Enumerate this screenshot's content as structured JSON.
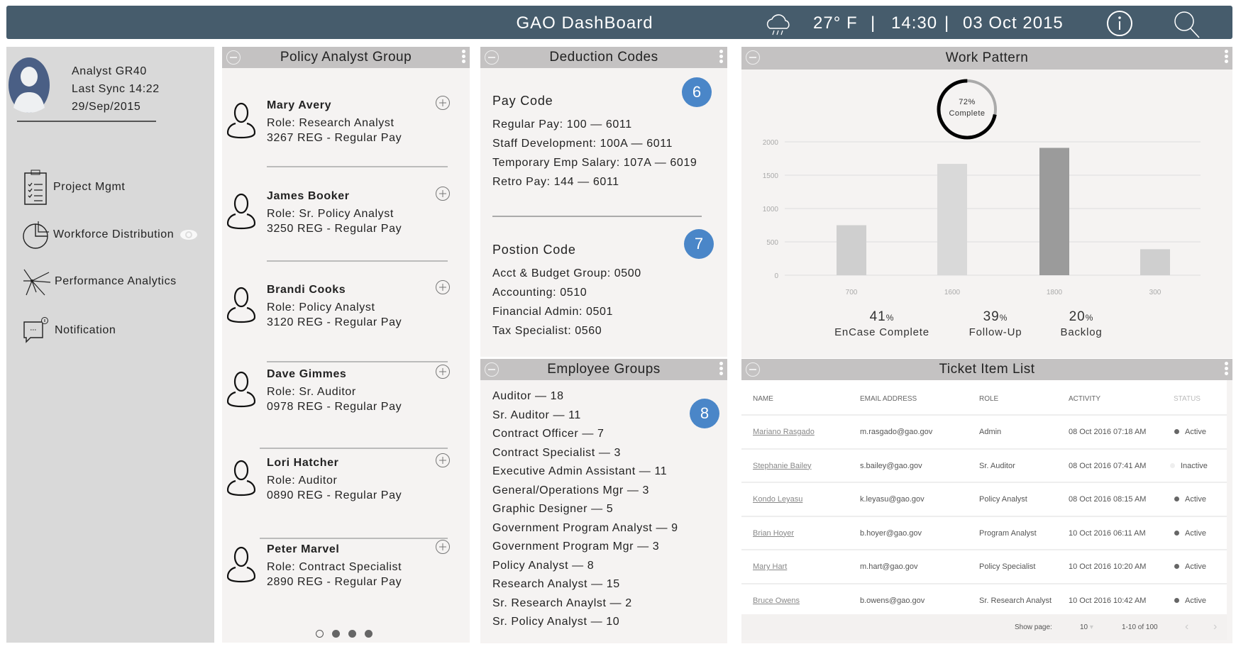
{
  "header": {
    "title": "GAO DashBoard",
    "weather_icon": "cloud-rain-icon",
    "temperature": "27° F",
    "time": "14:30",
    "date": "03 Oct 2015",
    "sep": "|"
  },
  "profile": {
    "name": "Analyst GR40",
    "sync": "Last Sync 14:22",
    "date": "29/Sep/2015"
  },
  "nav": [
    {
      "label": "Project Mgmt",
      "icon": "clipboard-icon"
    },
    {
      "label": "Workforce Distribution",
      "icon": "pie-chart-icon"
    },
    {
      "label": "Performance Analytics",
      "icon": "network-icon"
    },
    {
      "label": "Notification",
      "icon": "chat-bubble-icon"
    }
  ],
  "policy": {
    "title": "Policy Analyst Group",
    "people": [
      {
        "name": "Mary Avery",
        "role": "Role: Research Analyst",
        "pay": "3267 REG - Regular Pay"
      },
      {
        "name": "James Booker",
        "role": "Role: Sr. Policy Analyst",
        "pay": "3250 REG - Regular Pay"
      },
      {
        "name": "Brandi Cooks",
        "role": "Role: Policy Analyst",
        "pay": "3120 REG - Regular Pay"
      },
      {
        "name": "Dave Gimmes",
        "role": "Role: Sr. Auditor",
        "pay": "0978 REG - Regular Pay"
      },
      {
        "name": "Lori Hatcher",
        "role": "Role: Auditor",
        "pay": "0890 REG - Regular Pay"
      },
      {
        "name": "Peter Marvel",
        "role": "Role: Contract Specialist",
        "pay": "2890 REG - Regular Pay"
      }
    ],
    "page": 1,
    "pages": 4
  },
  "deduction": {
    "title": "Deduction Codes",
    "pay_title": "Pay Code",
    "pay_badge": "6",
    "pay": [
      "Regular Pay: 100 — 6011",
      "Staff Development: 100A — 6011",
      "Temporary Emp Salary: 107A — 6019",
      "Retro Pay: 144 — 6011"
    ],
    "pos_title": "Postion Code",
    "pos_badge": "7",
    "pos": [
      "Acct & Budget Group: 0500",
      "Accounting: 0510",
      "Financial Admin: 0501",
      "Tax Specialist: 0560"
    ]
  },
  "employee_groups": {
    "title": "Employee Groups",
    "badge": "8",
    "items": [
      "Auditor — 18",
      "Sr. Auditor — 11",
      "Contract Officer — 7",
      "Contract Specialist — 3",
      "Executive Admin Assistant — 11",
      "General/Operations Mgr — 3",
      "Graphic Designer — 5",
      "Government Program Analyst — 9",
      "Government Program Mgr — 3",
      "Policy Analyst — 8",
      "Research Analyst — 15",
      "Sr. Research Anaylst — 2",
      "Sr. Policy Analyst — 10"
    ]
  },
  "work": {
    "title": "Work Pattern",
    "donut_pct": "72%",
    "donut_label": "Complete",
    "donut_value": 72,
    "stats": [
      {
        "v": "41",
        "u": "%",
        "l": "EnCase Complete"
      },
      {
        "v": "39",
        "u": "%",
        "l": "Follow-Up"
      },
      {
        "v": "20",
        "u": "%",
        "l": "Backlog"
      }
    ]
  },
  "chart_data": {
    "type": "bar",
    "categories": [
      "700",
      "1600",
      "1800",
      "300"
    ],
    "values": [
      750,
      1670,
      1910,
      390
    ],
    "yticks": [
      "0",
      "500",
      "1000",
      "1500",
      "2000"
    ],
    "ylim": [
      0,
      2000
    ],
    "highlight_index": 2,
    "colors": [
      "#cfcfcf",
      "#d9d9d9",
      "#9b9b9b",
      "#cfcfcf"
    ],
    "grid": true
  },
  "tickets": {
    "title": "Ticket Item List",
    "columns": [
      "NAME",
      "EMAIL ADDRESS",
      "ROLE",
      "ACTIVITY",
      "STATUS"
    ],
    "rows": [
      [
        "Mariano Rasgado",
        "m.rasgado@gao.gov",
        "Admin",
        "08 Oct 2016 07:18 AM",
        "Active"
      ],
      [
        "Stephanie Bailey",
        "s.bailey@gao.gov",
        "Sr. Auditor",
        "08 Oct 2016 07:41 AM",
        "Inactive"
      ],
      [
        "Kondo Leyasu",
        "k.leyasu@gao.gov",
        "Policy Analyst",
        "08 Oct 2016 08:15 AM",
        "Active"
      ],
      [
        "Brian Hoyer",
        "b.hoyer@gao.gov",
        "Program Analyst",
        "10 Oct 2016 06:11 AM",
        "Active"
      ],
      [
        "Mary Hart",
        "m.hart@gao.gov",
        "Policy Specialist",
        "10 Oct 2016 10:20 AM",
        "Active"
      ],
      [
        "Bruce Owens",
        "b.owens@gao.gov",
        "Sr. Research Analyst",
        "10 Oct 2016 10:42 AM",
        "Active"
      ]
    ],
    "show_page_label": "Show page:",
    "page_size": "10",
    "range": "1-10 of 100"
  }
}
